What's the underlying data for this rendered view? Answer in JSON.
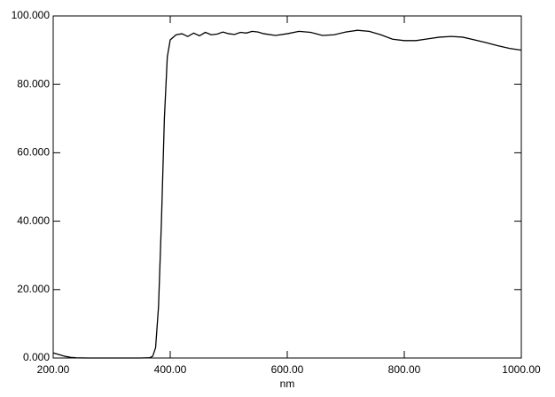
{
  "chart_data": {
    "type": "line",
    "x_label": "nm",
    "x": [
      200,
      210,
      220,
      230,
      240,
      260,
      300,
      350,
      365,
      370,
      375,
      380,
      385,
      390,
      395,
      400,
      410,
      420,
      430,
      440,
      450,
      460,
      470,
      480,
      490,
      500,
      510,
      520,
      530,
      540,
      550,
      560,
      580,
      600,
      620,
      640,
      660,
      680,
      700,
      720,
      740,
      760,
      780,
      800,
      820,
      840,
      860,
      880,
      900,
      920,
      940,
      960,
      980,
      1000
    ],
    "series": [
      {
        "color": "#000000",
        "values": [
          1.5,
          1.0,
          0.5,
          0.2,
          0.05,
          0,
          0,
          0,
          0.1,
          0.5,
          3,
          15,
          40,
          70,
          88,
          93,
          94.5,
          94.8,
          94,
          95,
          94.2,
          95.2,
          94.5,
          94.7,
          95.3,
          94.8,
          94.6,
          95.2,
          95,
          95.5,
          95.3,
          94.8,
          94.3,
          94.8,
          95.5,
          95.2,
          94.3,
          94.5,
          95.3,
          95.8,
          95.5,
          94.5,
          93.2,
          92.8,
          92.8,
          93.3,
          93.8,
          94,
          93.8,
          93,
          92.2,
          91.3,
          90.5,
          90
        ]
      }
    ],
    "xlim": [
      200,
      1000
    ],
    "xticks": [
      {
        "value": 200,
        "label": "200.00"
      },
      {
        "value": 400,
        "label": "400.00"
      },
      {
        "value": 600,
        "label": "600.00"
      },
      {
        "value": 800,
        "label": "800.00"
      },
      {
        "value": 1000,
        "label": "1000.00"
      }
    ],
    "ylim": [
      0,
      100
    ],
    "yticks": [
      {
        "value": 0,
        "label": "0.000"
      },
      {
        "value": 20,
        "label": "20.000"
      },
      {
        "value": 40,
        "label": "40.000"
      },
      {
        "value": 60,
        "label": "60.000"
      },
      {
        "value": 80,
        "label": "80.000"
      },
      {
        "value": 100,
        "label": "100.000"
      }
    ],
    "grid": false
  }
}
